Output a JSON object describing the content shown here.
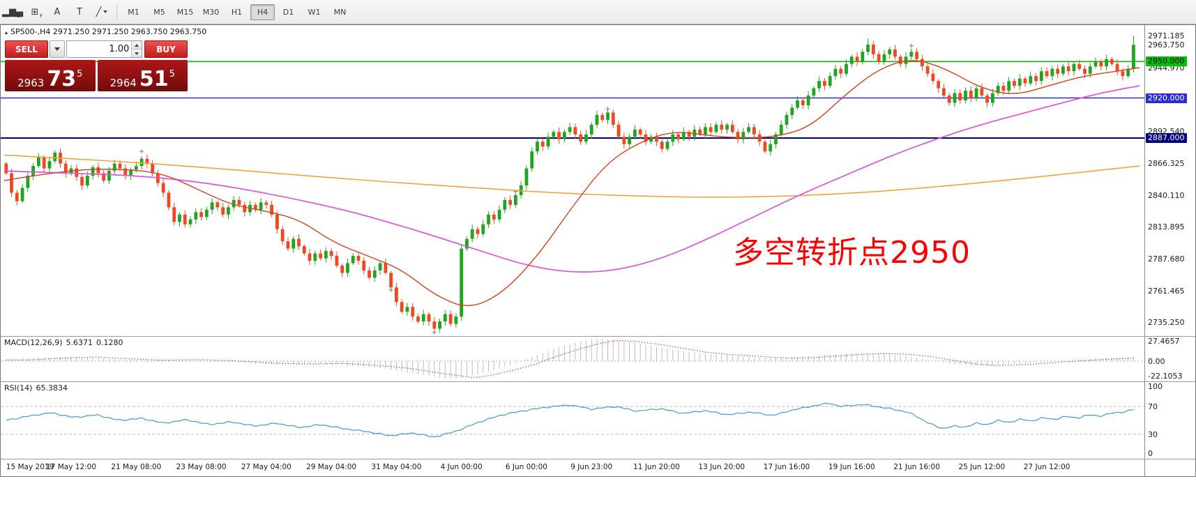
{
  "toolbar": {
    "tools": [
      {
        "name": "candlestick-chart-tool",
        "glyph": "▂▆▄",
        "sub": "E"
      },
      {
        "name": "indicator-grid-tool",
        "glyph": "⊞",
        "sub": "F"
      },
      {
        "name": "text-label-tool",
        "glyph": "A"
      },
      {
        "name": "text-box-tool",
        "glyph": "T"
      },
      {
        "name": "trendline-tool",
        "glyph": "╱",
        "dropdown": true
      }
    ],
    "timeframes": [
      {
        "label": "M1",
        "active": false
      },
      {
        "label": "M5",
        "active": false
      },
      {
        "label": "M15",
        "active": false
      },
      {
        "label": "M30",
        "active": false
      },
      {
        "label": "H1",
        "active": false
      },
      {
        "label": "H4",
        "active": true
      },
      {
        "label": "D1",
        "active": false
      },
      {
        "label": "W1",
        "active": false
      },
      {
        "label": "MN",
        "active": false
      }
    ]
  },
  "chart": {
    "collapse_glyph": "▴",
    "symbol_line": "SP500-,H4 2971.250 2971.250 2963.750 2963.750",
    "trade_panel": {
      "sell_label": "SELL",
      "buy_label": "BUY",
      "volume": "1.00",
      "bid": {
        "small": "2963",
        "big": "73",
        "sup": "5"
      },
      "ask": {
        "small": "2964",
        "big": "51",
        "sup": "5"
      }
    },
    "annotation": {
      "text": "多空转折点2950",
      "color": "#ff0000"
    }
  },
  "time_axis": {
    "bars_per_label": 12,
    "labels": [
      "15 May 2019",
      "17 May 12:00",
      "21 May 08:00",
      "23 May 08:00",
      "27 May 04:00",
      "29 May 04:00",
      "31 May 04:00",
      "4 Jun 00:00",
      "6 Jun 00:00",
      "9 Jun 23:00",
      "11 Jun 20:00",
      "13 Jun 20:00",
      "17 Jun 16:00",
      "19 Jun 16:00",
      "21 Jun 16:00",
      "25 Jun 12:00",
      "27 Jun 12:00"
    ]
  },
  "chart_data": [
    {
      "type": "candlestick",
      "title": "SP500- H4",
      "ylim": [
        2724,
        2980
      ],
      "up_color": "#1fa51f",
      "down_color": "#ef4a1f",
      "first_open": 2866,
      "closes": [
        2858,
        2842,
        2835,
        2846,
        2856,
        2864,
        2871,
        2862,
        2868,
        2875,
        2866,
        2858,
        2862,
        2855,
        2848,
        2856,
        2863,
        2858,
        2852,
        2860,
        2866,
        2862,
        2856,
        2861,
        2864,
        2870,
        2866,
        2858,
        2850,
        2842,
        2830,
        2818,
        2824,
        2816,
        2820,
        2826,
        2822,
        2828,
        2834,
        2830,
        2824,
        2830,
        2836,
        2832,
        2826,
        2832,
        2828,
        2834,
        2832,
        2824,
        2812,
        2802,
        2796,
        2804,
        2798,
        2792,
        2786,
        2792,
        2788,
        2794,
        2790,
        2782,
        2776,
        2784,
        2790,
        2786,
        2778,
        2772,
        2778,
        2784,
        2776,
        2764,
        2752,
        2744,
        2748,
        2740,
        2736,
        2742,
        2736,
        2730,
        2736,
        2742,
        2734,
        2740,
        2796,
        2804,
        2812,
        2808,
        2816,
        2824,
        2820,
        2828,
        2836,
        2832,
        2840,
        2848,
        2862,
        2876,
        2884,
        2880,
        2888,
        2892,
        2886,
        2892,
        2896,
        2890,
        2884,
        2890,
        2898,
        2906,
        2902,
        2908,
        2898,
        2888,
        2882,
        2888,
        2894,
        2890,
        2884,
        2888,
        2884,
        2878,
        2884,
        2890,
        2886,
        2892,
        2888,
        2894,
        2890,
        2896,
        2892,
        2898,
        2894,
        2898,
        2892,
        2886,
        2892,
        2896,
        2890,
        2884,
        2876,
        2882,
        2890,
        2898,
        2906,
        2912,
        2918,
        2914,
        2922,
        2928,
        2934,
        2930,
        2938,
        2944,
        2940,
        2948,
        2954,
        2950,
        2958,
        2964,
        2956,
        2950,
        2956,
        2960,
        2954,
        2948,
        2954,
        2958,
        2952,
        2946,
        2940,
        2934,
        2928,
        2922,
        2916,
        2924,
        2918,
        2926,
        2920,
        2928,
        2922,
        2916,
        2924,
        2930,
        2926,
        2934,
        2930,
        2936,
        2932,
        2938,
        2934,
        2942,
        2938,
        2944,
        2940,
        2946,
        2942,
        2948,
        2944,
        2940,
        2946,
        2950,
        2946,
        2952,
        2948,
        2942,
        2938,
        2944,
        2963.75
      ],
      "last_candle": {
        "high": 2971.185,
        "low": 2941
      },
      "high_overrides": [
        [
          159,
          2969
        ]
      ],
      "levels": [
        {
          "price": 2950.0,
          "color": "#00c000",
          "width": 1.5,
          "label": "2950.000",
          "text": "#000000"
        },
        {
          "price": 2920.0,
          "color": "#2b2bd0",
          "width": 1.5,
          "label": "2920.000",
          "text": "#ffffff"
        },
        {
          "price": 2887.0,
          "color": "#000080",
          "width": 2,
          "label": "2887.000",
          "text": "#ffffff"
        }
      ],
      "current_price": 2963.75,
      "current_price_label": "2963.750",
      "scale_labels": [
        2971.185,
        2944.97,
        2918.755,
        2892.54,
        2866.325,
        2840.11,
        2813.895,
        2787.68,
        2761.465,
        2735.25
      ],
      "overlays": [
        {
          "name": "ma-slow-orange",
          "color": "#f2a33c",
          "width": 1.6,
          "points": [
            [
              0,
              2873
            ],
            [
              0.08,
              2869
            ],
            [
              0.16,
              2864
            ],
            [
              0.24,
              2858
            ],
            [
              0.32,
              2852
            ],
            [
              0.4,
              2847
            ],
            [
              0.48,
              2842
            ],
            [
              0.56,
              2839
            ],
            [
              0.64,
              2838
            ],
            [
              0.72,
              2840
            ],
            [
              0.8,
              2845
            ],
            [
              0.88,
              2852
            ],
            [
              0.94,
              2858
            ],
            [
              1,
              2864
            ]
          ]
        },
        {
          "name": "ma-mid-magenta",
          "color": "#e24fe2",
          "width": 1.7,
          "points": [
            [
              0,
              2860
            ],
            [
              0.06,
              2858
            ],
            [
              0.12,
              2856
            ],
            [
              0.18,
              2850
            ],
            [
              0.24,
              2840
            ],
            [
              0.3,
              2828
            ],
            [
              0.36,
              2812
            ],
            [
              0.42,
              2794
            ],
            [
              0.46,
              2782
            ],
            [
              0.5,
              2776
            ],
            [
              0.54,
              2778
            ],
            [
              0.58,
              2788
            ],
            [
              0.62,
              2804
            ],
            [
              0.66,
              2822
            ],
            [
              0.7,
              2840
            ],
            [
              0.74,
              2856
            ],
            [
              0.78,
              2872
            ],
            [
              0.82,
              2886
            ],
            [
              0.86,
              2898
            ],
            [
              0.9,
              2908
            ],
            [
              0.94,
              2918
            ],
            [
              0.97,
              2925
            ],
            [
              1,
              2930
            ]
          ]
        },
        {
          "name": "ma-fast-red",
          "color": "#d8401a",
          "width": 1.4,
          "points": [
            [
              0,
              2852
            ],
            [
              0.05,
              2860
            ],
            [
              0.1,
              2862
            ],
            [
              0.14,
              2858
            ],
            [
              0.17,
              2845
            ],
            [
              0.2,
              2832
            ],
            [
              0.23,
              2827
            ],
            [
              0.26,
              2820
            ],
            [
              0.29,
              2801
            ],
            [
              0.32,
              2790
            ],
            [
              0.35,
              2779
            ],
            [
              0.38,
              2757
            ],
            [
              0.41,
              2746
            ],
            [
              0.44,
              2760
            ],
            [
              0.47,
              2790
            ],
            [
              0.5,
              2830
            ],
            [
              0.53,
              2866
            ],
            [
              0.56,
              2884
            ],
            [
              0.59,
              2893
            ],
            [
              0.62,
              2889
            ],
            [
              0.65,
              2887
            ],
            [
              0.68,
              2888
            ],
            [
              0.71,
              2896
            ],
            [
              0.74,
              2922
            ],
            [
              0.77,
              2944
            ],
            [
              0.8,
              2953
            ],
            [
              0.83,
              2944
            ],
            [
              0.86,
              2928
            ],
            [
              0.89,
              2922
            ],
            [
              0.92,
              2930
            ],
            [
              0.95,
              2938
            ],
            [
              0.98,
              2942
            ],
            [
              1,
              2945
            ]
          ]
        }
      ],
      "markers": [
        [
          25,
          2876
        ],
        [
          71,
          2762
        ],
        [
          79,
          2727
        ],
        [
          94,
          2843
        ],
        [
          111,
          2911
        ],
        [
          167,
          2963
        ]
      ]
    },
    {
      "type": "bar",
      "label": "MACD(12,26,9)",
      "value1": "5.6371",
      "value2": "0.1280",
      "ylim": [
        -25,
        30
      ],
      "hist_color": "#bdbdbd",
      "signal_color": "#d83030",
      "scale": [
        {
          "v": 27.4657,
          "label": "27.4657"
        },
        {
          "v": 0,
          "label": "0.00"
        },
        {
          "v": -22.1053,
          "label": "-22.1053"
        }
      ],
      "anchors": [
        [
          0,
          1.5
        ],
        [
          0.03,
          4
        ],
        [
          0.06,
          5.5
        ],
        [
          0.09,
          3
        ],
        [
          0.12,
          1
        ],
        [
          0.15,
          2
        ],
        [
          0.18,
          0.5
        ],
        [
          0.2,
          -1
        ],
        [
          0.22,
          -3
        ],
        [
          0.25,
          -4
        ],
        [
          0.28,
          -3
        ],
        [
          0.3,
          -5
        ],
        [
          0.32,
          -7
        ],
        [
          0.34,
          -10
        ],
        [
          0.36,
          -15
        ],
        [
          0.38,
          -19
        ],
        [
          0.395,
          -22.1
        ],
        [
          0.41,
          -19
        ],
        [
          0.43,
          -12
        ],
        [
          0.45,
          -4
        ],
        [
          0.46,
          2
        ],
        [
          0.48,
          12
        ],
        [
          0.5,
          21
        ],
        [
          0.52,
          27.5
        ],
        [
          0.54,
          26
        ],
        [
          0.56,
          22
        ],
        [
          0.58,
          17
        ],
        [
          0.6,
          12
        ],
        [
          0.62,
          9
        ],
        [
          0.64,
          7
        ],
        [
          0.66,
          5
        ],
        [
          0.68,
          4
        ],
        [
          0.7,
          5
        ],
        [
          0.72,
          7
        ],
        [
          0.74,
          9
        ],
        [
          0.76,
          10
        ],
        [
          0.78,
          9
        ],
        [
          0.8,
          6
        ],
        [
          0.82,
          1
        ],
        [
          0.84,
          -4
        ],
        [
          0.86,
          -6
        ],
        [
          0.88,
          -5
        ],
        [
          0.9,
          -3
        ],
        [
          0.92,
          -1
        ],
        [
          0.94,
          1
        ],
        [
          0.96,
          2.5
        ],
        [
          0.98,
          4
        ],
        [
          1,
          5.6
        ]
      ]
    },
    {
      "type": "line",
      "label": "RSI(14)",
      "value": "65.3834",
      "ylim": [
        0,
        100
      ],
      "color": "#3e9bd8",
      "level_lines": [
        70,
        30
      ],
      "scale": [
        {
          "v": 100,
          "label": "100"
        },
        {
          "v": 70,
          "label": "70"
        },
        {
          "v": 30,
          "label": "30"
        },
        {
          "v": 0,
          "label": "0"
        }
      ],
      "anchors": [
        [
          0,
          50
        ],
        [
          0.02,
          56
        ],
        [
          0.04,
          61
        ],
        [
          0.06,
          54
        ],
        [
          0.08,
          58
        ],
        [
          0.1,
          50
        ],
        [
          0.12,
          53
        ],
        [
          0.14,
          46
        ],
        [
          0.16,
          51
        ],
        [
          0.18,
          44
        ],
        [
          0.2,
          48
        ],
        [
          0.22,
          42
        ],
        [
          0.24,
          46
        ],
        [
          0.26,
          40
        ],
        [
          0.28,
          44
        ],
        [
          0.3,
          38
        ],
        [
          0.32,
          34
        ],
        [
          0.34,
          28
        ],
        [
          0.36,
          32
        ],
        [
          0.38,
          26
        ],
        [
          0.4,
          35
        ],
        [
          0.42,
          48
        ],
        [
          0.44,
          58
        ],
        [
          0.46,
          64
        ],
        [
          0.48,
          69
        ],
        [
          0.5,
          72
        ],
        [
          0.52,
          66
        ],
        [
          0.54,
          70
        ],
        [
          0.56,
          63
        ],
        [
          0.58,
          67
        ],
        [
          0.6,
          60
        ],
        [
          0.62,
          64
        ],
        [
          0.64,
          58
        ],
        [
          0.66,
          62
        ],
        [
          0.68,
          57
        ],
        [
          0.7,
          66
        ],
        [
          0.72,
          72
        ],
        [
          0.73,
          75
        ],
        [
          0.74,
          70
        ],
        [
          0.76,
          73
        ],
        [
          0.78,
          68
        ],
        [
          0.8,
          62
        ],
        [
          0.82,
          45
        ],
        [
          0.83,
          38
        ],
        [
          0.84,
          42
        ],
        [
          0.85,
          40
        ],
        [
          0.86,
          46
        ],
        [
          0.87,
          44
        ],
        [
          0.88,
          50
        ],
        [
          0.89,
          47
        ],
        [
          0.9,
          52
        ],
        [
          0.91,
          49
        ],
        [
          0.92,
          54
        ],
        [
          0.93,
          51
        ],
        [
          0.94,
          56
        ],
        [
          0.95,
          53
        ],
        [
          0.96,
          58
        ],
        [
          0.97,
          56
        ],
        [
          0.98,
          60
        ],
        [
          0.99,
          62
        ],
        [
          1,
          65.4
        ]
      ]
    }
  ]
}
